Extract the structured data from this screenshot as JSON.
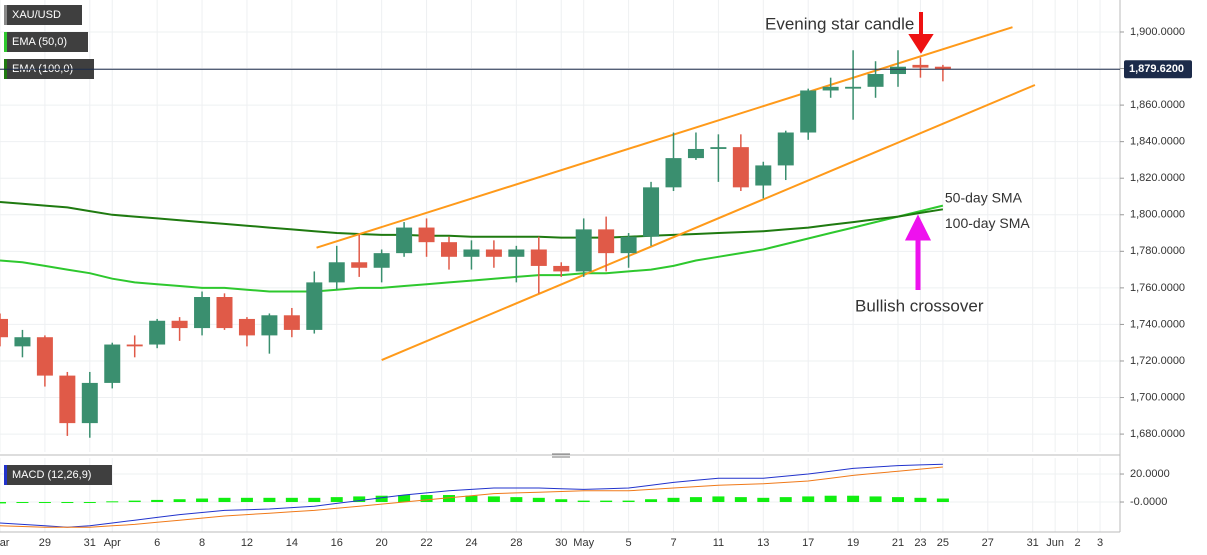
{
  "chart_data": {
    "type": "candlestick",
    "symbol": "XAU/USD",
    "indicator_labels": [
      "EMA (50,0)",
      "EMA (100,0)"
    ],
    "categories": [
      "Mar",
      null,
      "29",
      null,
      "31",
      "Apr",
      null,
      "6",
      null,
      "8",
      null,
      "12",
      null,
      "14",
      null,
      "16",
      null,
      "20",
      null,
      "22",
      null,
      "24",
      null,
      "28",
      null,
      "30",
      "May",
      null,
      "5",
      null,
      "7",
      null,
      "11",
      null,
      "13",
      null,
      "17",
      null,
      "19",
      null,
      "21",
      "23",
      "25",
      null,
      "27",
      null,
      "31",
      "Jun",
      "2",
      "3"
    ],
    "open": [
      1743,
      1728,
      1733,
      1712,
      1686,
      1708,
      1729,
      1729,
      1742,
      1738,
      1755,
      1743,
      1734,
      1745,
      1737,
      1763,
      1774,
      1771,
      1779,
      1793,
      1785,
      1777,
      1781,
      1777,
      1781,
      1772,
      1769,
      1792,
      1779,
      1788,
      1815,
      1831,
      1836,
      1837,
      1816,
      1827,
      1845,
      1868,
      1869,
      1870,
      1877,
      1882,
      1881,
      null,
      null,
      null,
      null,
      null,
      null,
      null
    ],
    "high": [
      1746,
      1737,
      1734,
      1714,
      1714,
      1730,
      1734,
      1743,
      1744,
      1758,
      1757,
      1744,
      1746,
      1749,
      1769,
      1783,
      1789,
      1781,
      1796,
      1798,
      1788,
      1786,
      1786,
      1783,
      1788,
      1774,
      1798,
      1799,
      1790,
      1818,
      1845,
      1845,
      1844,
      1844,
      1829,
      1846,
      1869,
      1875,
      1890,
      1884,
      1890,
      1886,
      1882,
      null,
      null,
      null,
      null,
      null,
      null,
      null
    ],
    "low": [
      1728,
      1722,
      1706,
      1679,
      1678,
      1705,
      1722,
      1727,
      1731,
      1734,
      1737,
      1728,
      1724,
      1733,
      1735,
      1759,
      1766,
      1763,
      1777,
      1777,
      1770,
      1770,
      1771,
      1763,
      1757,
      1766,
      1766,
      1769,
      1771,
      1783,
      1813,
      1830,
      1818,
      1813,
      1809,
      1819,
      1841,
      1864,
      1852,
      1864,
      1870,
      1875,
      1873,
      null,
      null,
      null,
      null,
      null,
      null,
      null
    ],
    "close": [
      1733,
      1733,
      1712,
      1686,
      1708,
      1729,
      1728,
      1742,
      1738,
      1755,
      1738,
      1734,
      1745,
      1737,
      1763,
      1774,
      1771,
      1779,
      1793,
      1785,
      1777,
      1781,
      1777,
      1781,
      1772,
      1769,
      1792,
      1779,
      1788,
      1815,
      1831,
      1836,
      1837,
      1815,
      1827,
      1845,
      1868,
      1870,
      1870,
      1877,
      1881,
      1880.5,
      1879.62,
      null,
      null,
      null,
      null,
      null,
      null,
      null
    ],
    "up_color": "#3a8f6f",
    "down_color": "#e05a48",
    "ylim": [
      1670.2,
      1917.5
    ],
    "yticks": [
      {
        "value": 1680,
        "label": "1,680.0000"
      },
      {
        "value": 1700,
        "label": "1,700.0000"
      },
      {
        "value": 1720,
        "label": "1,720.0000"
      },
      {
        "value": 1740,
        "label": "1,740.0000"
      },
      {
        "value": 1760,
        "label": "1,760.0000"
      },
      {
        "value": 1780,
        "label": "1,780.0000"
      },
      {
        "value": 1800,
        "label": "1,800.0000"
      },
      {
        "value": 1820,
        "label": "1,820.0000"
      },
      {
        "value": 1840,
        "label": "1,840.0000"
      },
      {
        "value": 1860,
        "label": "1,860.0000"
      },
      {
        "value": 1880,
        "label": "1,880.0000"
      },
      {
        "value": 1900,
        "label": "1,900.0000"
      }
    ],
    "grid": true,
    "last_price": {
      "value": 1879.62,
      "label": "1,879.6200"
    },
    "series": [
      {
        "name": "50-day SMA",
        "color": "#2ec82e",
        "values": [
          1775,
          1774,
          1772,
          1770,
          1768,
          1765,
          1763,
          1762,
          1761,
          1760,
          1760,
          1759,
          1758,
          1758,
          1758,
          1759,
          1760,
          1760,
          1761,
          1762,
          1763,
          1764,
          1765,
          1766,
          1767,
          1767,
          1768,
          1768,
          1769,
          1770,
          1772,
          1775,
          1777,
          1779,
          1781,
          1784,
          1787,
          1790,
          1793,
          1796,
          1799,
          1802,
          1805,
          null,
          null,
          null,
          null,
          null,
          null,
          null
        ]
      },
      {
        "name": "100-day SMA",
        "color": "#1f7a10",
        "values": [
          1807,
          1806,
          1805,
          1804,
          1802,
          1800,
          1799,
          1798,
          1797,
          1796,
          1795,
          1794,
          1793,
          1792,
          1791,
          1790,
          1789.5,
          1789,
          1789,
          1788.5,
          1788.5,
          1788,
          1788,
          1788,
          1788,
          1787.5,
          1787.5,
          1787.5,
          1788,
          1788.5,
          1789,
          1789.5,
          1790,
          1790.5,
          1791,
          1792,
          1793,
          1794.5,
          1796,
          1797.5,
          1799,
          1801,
          1803,
          null,
          null,
          null,
          null,
          null,
          null,
          null
        ]
      }
    ],
    "trendlines": [
      {
        "color": "#ff9a1a",
        "x": [
          14.1,
          45.1
        ],
        "y": [
          1782,
          1902.6
        ]
      },
      {
        "color": "#ff9a1a",
        "x": [
          17.0,
          46.1
        ],
        "y": [
          1720.5,
          1871
        ]
      }
    ],
    "annotations": [
      {
        "text": "Evening star candle",
        "color": "#ee1111"
      },
      {
        "text": "Bullish crossover",
        "color": "#ee11ee"
      }
    ],
    "macd": {
      "label": "MACD (12,26,9)",
      "ylim": [
        -20,
        28.6
      ],
      "yticks": [
        {
          "value": 20,
          "label": "20.0000"
        },
        {
          "value": 0,
          "label": "-0.0000"
        }
      ],
      "macd_line": {
        "color": "#2233cc",
        "values": [
          -15,
          -16,
          -17,
          -18,
          -17,
          -15,
          -13,
          -11,
          -9,
          -7.5,
          -6,
          -5.5,
          -5,
          -4,
          -3,
          -1,
          1,
          3,
          5,
          6.5,
          8,
          9,
          10,
          10,
          10,
          9.5,
          9,
          9.5,
          10,
          12,
          14,
          15.5,
          17,
          17,
          17,
          18.5,
          20,
          22,
          24,
          25,
          26,
          26.5,
          27,
          null,
          null,
          null,
          null,
          null,
          null,
          null
        ]
      },
      "signal_line": {
        "color": "#f07a1a",
        "values": [
          -17,
          -17.5,
          -18,
          -18,
          -18,
          -17,
          -16,
          -14.5,
          -13,
          -11.5,
          -10,
          -9,
          -8,
          -7,
          -6,
          -4.5,
          -3,
          -1.5,
          0,
          1.5,
          3,
          4.5,
          6,
          6.5,
          7,
          7.5,
          8,
          8,
          8,
          9,
          10,
          11,
          12,
          12.5,
          13,
          14,
          15,
          17,
          19,
          20.5,
          22,
          23.5,
          25,
          null,
          null,
          null,
          null,
          null,
          null,
          null
        ]
      },
      "histogram": {
        "color": "#11ee11",
        "values": [
          -1,
          -0.5,
          -0.5,
          -0.5,
          -0.5,
          0.5,
          1,
          1.5,
          2,
          2.5,
          3,
          3,
          3,
          3,
          3,
          3.5,
          4,
          4.5,
          5,
          5,
          5,
          4.5,
          4,
          3.5,
          3,
          2,
          1,
          1,
          1,
          2,
          3,
          3.5,
          4,
          3.5,
          3,
          3.5,
          4,
          4.5,
          4.5,
          4,
          3.5,
          3,
          2.5,
          null,
          null,
          null,
          null,
          null,
          null,
          null
        ]
      }
    }
  }
}
